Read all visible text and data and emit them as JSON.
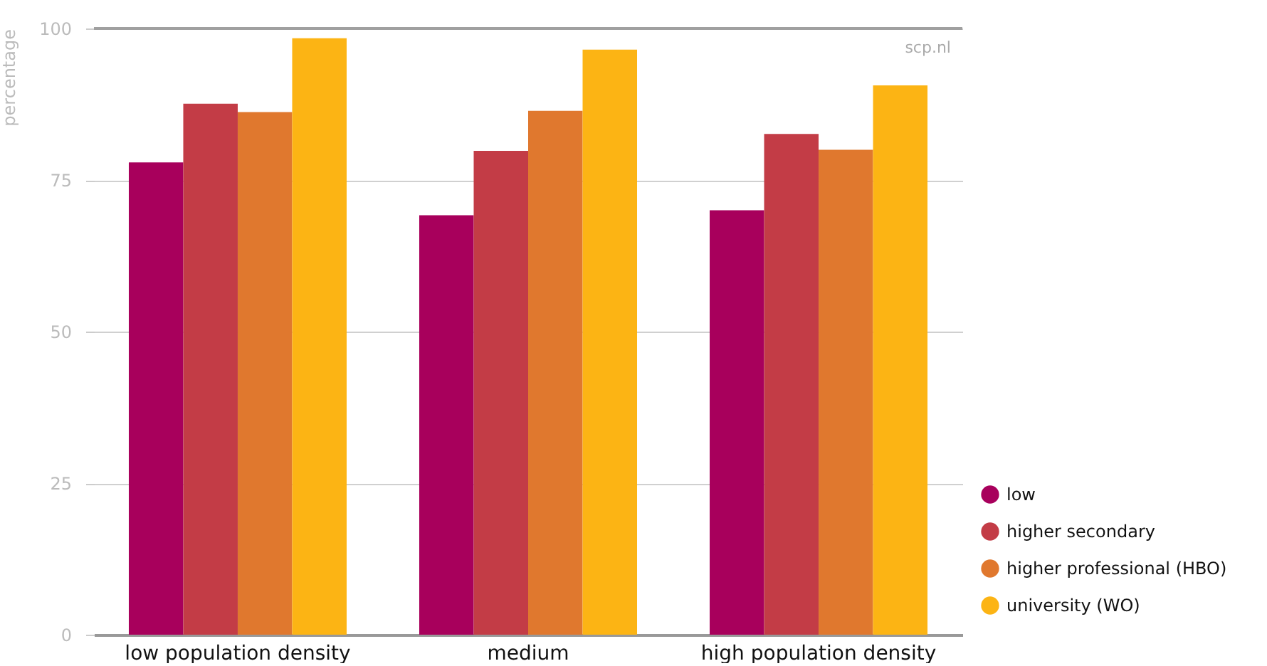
{
  "chart_data": {
    "type": "bar",
    "ylabel": "percentage",
    "categories": [
      "low population density",
      "medium",
      "high population density"
    ],
    "series": [
      {
        "name": "low",
        "color": "#a8005c",
        "values": [
          77.9,
          69.2,
          70.0
        ]
      },
      {
        "name": "higher secondary",
        "color": "#c33c46",
        "values": [
          87.6,
          79.8,
          82.6
        ]
      },
      {
        "name": "higher professional (HBO)",
        "color": "#e0782e",
        "values": [
          86.2,
          86.4,
          80.0
        ]
      },
      {
        "name": "university (WO)",
        "color": "#fcb414",
        "values": [
          98.4,
          96.5,
          90.6
        ]
      }
    ],
    "ylim": [
      0,
      100
    ],
    "yticks": [
      0,
      25,
      50,
      75,
      100
    ],
    "grid": "y",
    "legend": "bottom right",
    "annotations": [
      "scp.nl"
    ]
  }
}
